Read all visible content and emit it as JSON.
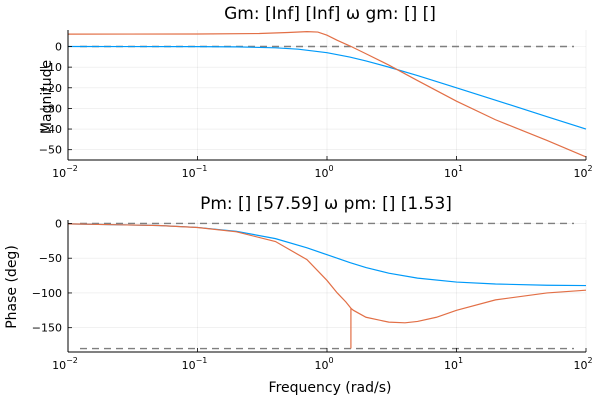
{
  "chart_data": [
    {
      "type": "line",
      "title": "Gm: [Inf] [Inf]  ω gm: [] []",
      "xlabel": "",
      "ylabel": "Magnitude",
      "xscale": "log",
      "xlim": [
        0.01,
        100
      ],
      "ylim": [
        -55,
        8
      ],
      "yticks": [
        0,
        -10,
        -20,
        -30,
        -40,
        -50
      ],
      "grid": true,
      "legend": "none",
      "reference_lines": [
        {
          "y": 0,
          "color": "#7f7f7f",
          "style": "dashed"
        }
      ],
      "series": [
        {
          "color": "#009af9",
          "x": [
            0.01,
            0.1,
            0.2,
            0.4,
            0.6,
            1.0,
            1.5,
            2.0,
            3.0,
            5.0,
            10,
            20,
            50,
            100
          ],
          "y": [
            0,
            -0.04,
            -0.17,
            -0.64,
            -1.3,
            -3.0,
            -5.1,
            -7.0,
            -10.0,
            -14.1,
            -20.0,
            -26.0,
            -34.0,
            -40.0
          ]
        },
        {
          "color": "#e26f46",
          "x": [
            0.01,
            0.1,
            0.3,
            0.5,
            0.7,
            0.85,
            1.0,
            1.2,
            1.5,
            2.0,
            3.0,
            5.0,
            10,
            20,
            50,
            100
          ],
          "y": [
            6.0,
            6.05,
            6.3,
            6.8,
            7.2,
            7.0,
            5.5,
            3.0,
            0.3,
            -3.5,
            -9.0,
            -16.5,
            -26.5,
            -35.5,
            -45.5,
            -53.5
          ]
        }
      ]
    },
    {
      "type": "line",
      "title": "Pm: [] [57.59]  ω pm: [] [1.53]",
      "xlabel": "Frequency (rad/s)",
      "ylabel": "Phase (deg)",
      "xscale": "log",
      "xlim": [
        0.01,
        100
      ],
      "ylim": [
        -185,
        5
      ],
      "yticks": [
        0,
        -50,
        -100,
        -150
      ],
      "grid": true,
      "legend": "none",
      "reference_lines": [
        {
          "y": 0,
          "color": "#7f7f7f",
          "style": "dashed"
        },
        {
          "y": -180,
          "color": "#7f7f7f",
          "style": "dashed"
        }
      ],
      "series": [
        {
          "color": "#009af9",
          "x": [
            0.01,
            0.05,
            0.1,
            0.2,
            0.4,
            0.7,
            1.0,
            1.5,
            2.0,
            3.0,
            5.0,
            10,
            20,
            50,
            100
          ],
          "y": [
            -0.6,
            -2.9,
            -5.7,
            -11.3,
            -21.8,
            -35.0,
            -45.0,
            -56.3,
            -63.4,
            -71.6,
            -78.7,
            -84.3,
            -87.1,
            -88.9,
            -89.4
          ]
        },
        {
          "color": "#e26f46",
          "x": [
            0.01,
            0.05,
            0.1,
            0.2,
            0.4,
            0.7,
            1.0,
            1.2,
            1.4,
            1.53,
            1.53,
            1.53,
            1.6,
            2.0,
            3.0,
            4.0,
            5.0,
            7.0,
            10,
            20,
            50,
            100
          ],
          "y": [
            -0.6,
            -2.9,
            -5.8,
            -12.0,
            -26.0,
            -52.0,
            -82.0,
            -100.0,
            -113.0,
            -122.0,
            -180.0,
            -122.0,
            -125.0,
            -135.0,
            -142.0,
            -143.0,
            -141.0,
            -135.0,
            -125.0,
            -110.0,
            -100.0,
            -96.0
          ]
        }
      ]
    }
  ]
}
